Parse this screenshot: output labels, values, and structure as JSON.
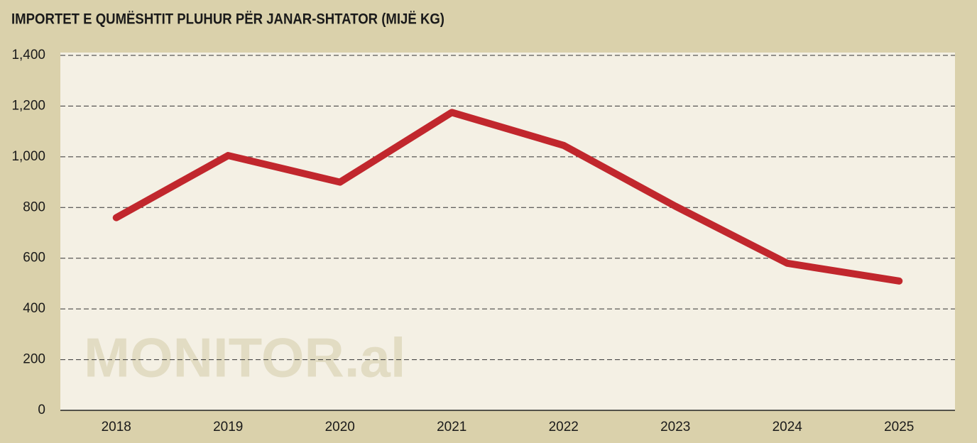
{
  "chart_data": {
    "type": "line",
    "title": "IMPORTET E QUMËSHTIT PLUHUR PËR JANAR-SHTATOR (MIJË KG)",
    "watermark": "MONITOR.al",
    "categories": [
      "2018",
      "2019",
      "2020",
      "2021",
      "2022",
      "2023",
      "2024",
      "2025"
    ],
    "values": [
      760,
      1005,
      900,
      1175,
      1045,
      805,
      580,
      510
    ],
    "color": "#c1272d",
    "ylim": [
      0,
      1400
    ],
    "yticks": [
      0,
      200,
      400,
      600,
      800,
      {
        "value": 1000,
        "label": "1,000"
      },
      {
        "value": 1200,
        "label": "1,200"
      },
      {
        "value": 1400,
        "label": "1,400"
      }
    ],
    "grid": true
  }
}
